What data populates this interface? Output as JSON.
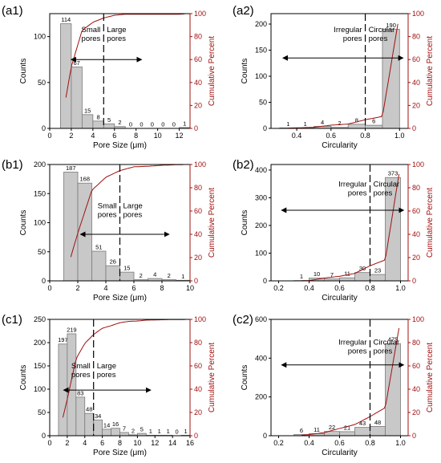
{
  "chart_data": [
    {
      "id": "a1",
      "panel_label": "(a1)",
      "type": "bar",
      "xlabel": "Pore Size (μm)",
      "ylabel": "Counts",
      "y2label": "Cumulative Percent",
      "xlim": [
        0,
        13
      ],
      "ylim": [
        0,
        125
      ],
      "y2lim": [
        0,
        100
      ],
      "xticks": [
        0,
        2,
        4,
        6,
        8,
        10,
        12
      ],
      "yticks": [
        0,
        50,
        100
      ],
      "y2ticks": [
        0,
        20,
        40,
        60,
        80,
        100
      ],
      "bin_width": 1,
      "bins": [
        1,
        2,
        3,
        4,
        5,
        6,
        7,
        8,
        9,
        10,
        11,
        12
      ],
      "values": [
        114,
        67,
        15,
        8,
        5,
        2,
        0,
        0,
        0,
        0,
        0,
        1
      ],
      "value_labels": [
        "114",
        "67",
        "15",
        "8",
        "5",
        "2",
        "0",
        "0",
        "0",
        "0",
        "0",
        "1"
      ],
      "threshold": 5,
      "cum_start": 1.5,
      "cum_end": 12.5,
      "region_labels": {
        "left": [
          "Small",
          "pores"
        ],
        "right": [
          "Large",
          "pores"
        ]
      },
      "region_label_y": 105,
      "arrow_y": 75,
      "arrow_x": [
        2,
        8.5
      ]
    },
    {
      "id": "a2",
      "panel_label": "(a2)",
      "type": "bar",
      "xlabel": "Circularity",
      "ylabel": "Counts",
      "y2label": "Cumulative Percent",
      "xlim": [
        0.25,
        1.05
      ],
      "ylim": [
        0,
        220
      ],
      "y2lim": [
        0,
        100
      ],
      "xticks": [
        0.4,
        0.6,
        0.8,
        1.0
      ],
      "xtick_labels": [
        "0.4",
        "0.6",
        "0.8",
        "1.0"
      ],
      "yticks": [
        0,
        50,
        100,
        150,
        200
      ],
      "y2ticks": [
        0,
        20,
        40,
        60,
        80,
        100
      ],
      "bin_width": 0.1,
      "bins": [
        0.3,
        0.4,
        0.5,
        0.6,
        0.7,
        0.8,
        0.9
      ],
      "values": [
        1,
        1,
        4,
        2,
        8,
        6,
        190
      ],
      "value_labels": [
        "1",
        "1",
        "4",
        "2",
        "8",
        "6",
        "190"
      ],
      "threshold": 0.8,
      "cum_start": 0.35,
      "cum_end": 0.99,
      "region_labels": {
        "left": [
          "Irregular",
          "pores"
        ],
        "right": [
          "Circular",
          "pores"
        ]
      },
      "region_label_y": 185,
      "arrow_y": 135,
      "arrow_x": [
        0.32,
        1.02
      ]
    },
    {
      "id": "b1",
      "panel_label": "(b1)",
      "type": "bar",
      "xlabel": "Pore Size (μm)",
      "ylabel": "Counts",
      "y2label": "Cumulative Percent",
      "xlim": [
        0,
        10
      ],
      "ylim": [
        0,
        200
      ],
      "y2lim": [
        0,
        100
      ],
      "xticks": [
        0,
        2,
        4,
        6,
        8,
        10
      ],
      "yticks": [
        0,
        50,
        100,
        150,
        200
      ],
      "y2ticks": [
        0,
        20,
        40,
        60,
        80,
        100
      ],
      "bin_width": 1,
      "bins": [
        1,
        2,
        3,
        4,
        5,
        6,
        7,
        8,
        9
      ],
      "values": [
        187,
        168,
        51,
        26,
        15,
        2,
        4,
        2,
        1
      ],
      "value_labels": [
        "187",
        "168",
        "51",
        "26",
        "15",
        "2",
        "4",
        "2",
        "1"
      ],
      "threshold": 5,
      "cum_start": 1.5,
      "cum_end": 9.5,
      "region_labels": {
        "left": [
          "Small",
          "pores"
        ],
        "right": [
          "Large",
          "pores"
        ]
      },
      "region_label_y": 125,
      "arrow_y": 80,
      "arrow_x": [
        2.2,
        8.5
      ]
    },
    {
      "id": "b2",
      "panel_label": "(b2)",
      "type": "bar",
      "xlabel": "Circularity",
      "ylabel": "Counts",
      "y2label": "Cumulative Percent",
      "xlim": [
        0.15,
        1.05
      ],
      "ylim": [
        0,
        420
      ],
      "y2lim": [
        0,
        100
      ],
      "xticks": [
        0.2,
        0.4,
        0.6,
        0.8,
        1.0
      ],
      "xtick_labels": [
        "0.2",
        "0.4",
        "0.6",
        "0.8",
        "1.0"
      ],
      "yticks": [
        0,
        100,
        200,
        300,
        400
      ],
      "y2ticks": [
        0,
        20,
        40,
        60,
        80,
        100
      ],
      "bin_width": 0.1,
      "bins": [
        0.3,
        0.4,
        0.5,
        0.6,
        0.7,
        0.8,
        0.9
      ],
      "values": [
        1,
        10,
        7,
        11,
        30,
        23,
        373
      ],
      "value_labels": [
        "1",
        "10",
        "7",
        "11",
        "30",
        "23",
        "373"
      ],
      "threshold": 0.8,
      "cum_start": 0.35,
      "cum_end": 0.99,
      "region_labels": {
        "left": [
          "Irregular",
          "pores"
        ],
        "right": [
          "Circular",
          "pores"
        ]
      },
      "region_label_y": 340,
      "arrow_y": 255,
      "arrow_x": [
        0.22,
        1.02
      ]
    },
    {
      "id": "c1",
      "panel_label": "(c1)",
      "type": "bar",
      "xlabel": "Pore Size (μm)",
      "ylabel": "Counts",
      "y2label": "Cumulative Percent",
      "xlim": [
        0,
        16
      ],
      "ylim": [
        0,
        250
      ],
      "y2lim": [
        0,
        100
      ],
      "xticks": [
        0,
        2,
        4,
        6,
        8,
        10,
        12,
        14,
        16
      ],
      "yticks": [
        0,
        50,
        100,
        150,
        200,
        250
      ],
      "y2ticks": [
        0,
        20,
        40,
        60,
        80,
        100
      ],
      "bin_width": 1,
      "bins": [
        1,
        2,
        3,
        4,
        5,
        6,
        7,
        8,
        9,
        10,
        11,
        12,
        13,
        14,
        15
      ],
      "values": [
        197,
        219,
        83,
        48,
        34,
        14,
        16,
        7,
        2,
        5,
        1,
        1,
        1,
        0,
        1
      ],
      "value_labels": [
        "197",
        "219",
        "83",
        "48",
        "34",
        "14",
        "16",
        "7",
        "2",
        "5",
        "1",
        "1",
        "1",
        "0",
        "1"
      ],
      "threshold": 5,
      "cum_start": 1.5,
      "cum_end": 15.5,
      "region_labels": {
        "left": [
          "Small",
          "pores"
        ],
        "right": [
          "Large",
          "pores"
        ]
      },
      "region_label_y": 145,
      "arrow_y": 98,
      "arrow_x": [
        1.6,
        11.5
      ]
    },
    {
      "id": "c2",
      "panel_label": "(c2)",
      "type": "bar",
      "xlabel": "Circularity",
      "ylabel": "Counts",
      "y2label": "Cumulative Percent",
      "xlim": [
        0.15,
        1.05
      ],
      "ylim": [
        0,
        600
      ],
      "y2lim": [
        0,
        100
      ],
      "xticks": [
        0.2,
        0.4,
        0.6,
        0.8,
        1.0
      ],
      "xtick_labels": [
        "0.2",
        "0.4",
        "0.6",
        "0.8",
        "1.0"
      ],
      "yticks": [
        0,
        200,
        400,
        600
      ],
      "y2ticks": [
        0,
        20,
        40,
        60,
        80,
        100
      ],
      "bin_width": 0.1,
      "bins": [
        0.3,
        0.4,
        0.5,
        0.6,
        0.7,
        0.8,
        0.9
      ],
      "values": [
        6,
        11,
        22,
        21,
        43,
        48,
        475
      ],
      "value_labels": [
        "6",
        "11",
        "22",
        "21",
        "43",
        "48",
        "475"
      ],
      "threshold": 0.8,
      "cum_start": 0.35,
      "cum_end": 0.99,
      "region_labels": {
        "left": [
          "Irregular",
          "pores"
        ],
        "right": [
          "Circular",
          "pores"
        ]
      },
      "region_label_y": 470,
      "arrow_y": 365,
      "arrow_x": [
        0.22,
        1.02
      ]
    }
  ],
  "colors": {
    "bar_fill": "#c8c8c8",
    "bar_stroke": "#7a7a7a",
    "cumulative_line": "#a01010",
    "axis": "#000000"
  }
}
